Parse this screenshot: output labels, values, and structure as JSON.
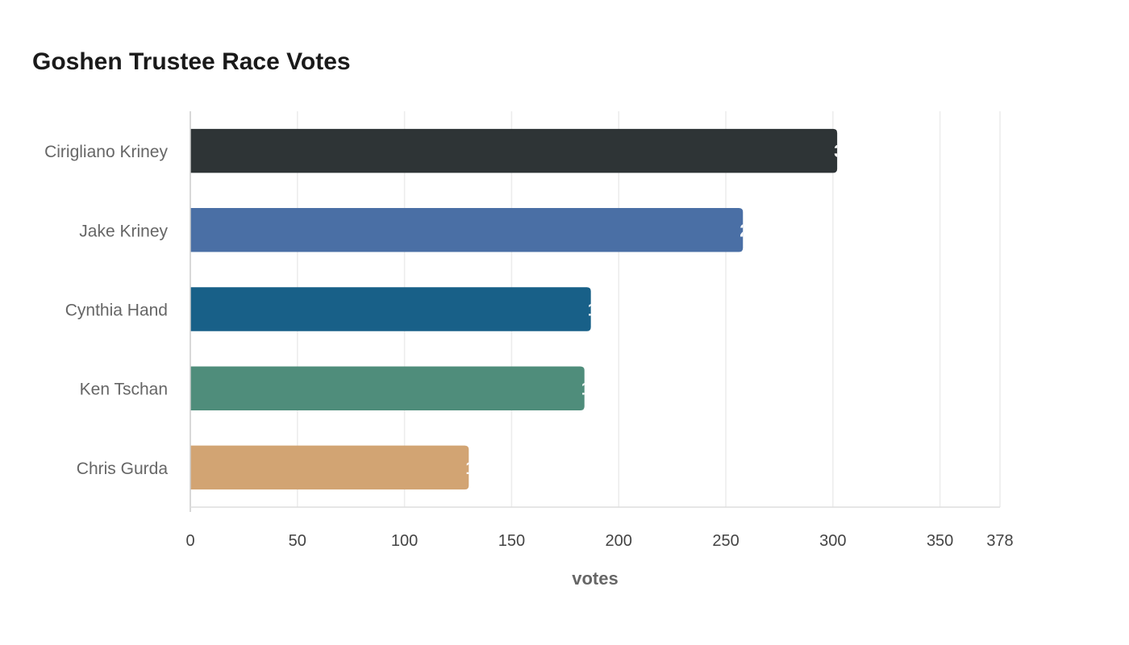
{
  "chart_data": {
    "type": "bar",
    "orientation": "horizontal",
    "title": "Goshen Trustee Race Votes",
    "xlabel": "votes",
    "ylabel": "",
    "categories": [
      "Cirigliano Kriney",
      "Jake Kriney",
      "Cynthia Hand",
      "Ken Tschan",
      "Chris Gurda"
    ],
    "values": [
      302,
      258,
      187,
      184,
      130
    ],
    "colors": [
      "#2e3436",
      "#4a6fa5",
      "#186088",
      "#4f8d7b",
      "#d2a473"
    ],
    "xlim": [
      0,
      378
    ],
    "xticks": [
      0,
      50,
      100,
      150,
      200,
      250,
      300,
      350,
      378
    ],
    "grid": "vertical",
    "legend": "none"
  }
}
